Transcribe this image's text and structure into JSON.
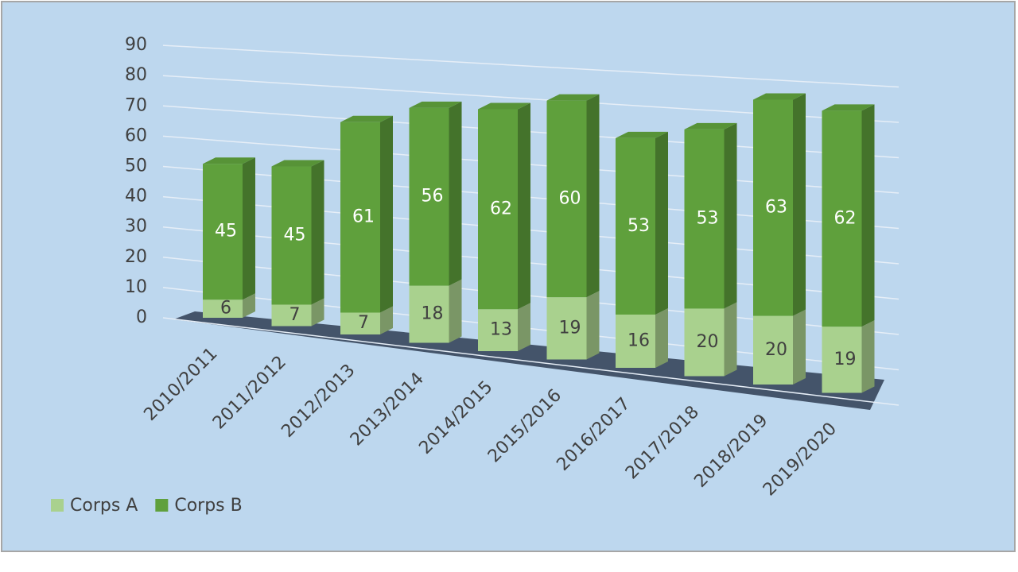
{
  "chart_data": {
    "type": "bar3d_stacked",
    "categories": [
      "2010/2011",
      "2011/2012",
      "2012/2013",
      "2013/2014",
      "2014/2015",
      "2015/2016",
      "2016/2017",
      "2017/2018",
      "2018/2019",
      "2019/2020"
    ],
    "series": [
      {
        "name": "Corps A",
        "color": "#a9d18e",
        "values": [
          6,
          7,
          7,
          18,
          13,
          19,
          16,
          20,
          20,
          19
        ]
      },
      {
        "name": "Corps B",
        "color": "#5fa03c",
        "values": [
          45,
          45,
          61,
          56,
          62,
          60,
          53,
          53,
          63,
          62
        ]
      }
    ],
    "ylim": [
      0,
      90
    ],
    "yticks": [
      0,
      10,
      20,
      30,
      40,
      50,
      60,
      70,
      80,
      90
    ],
    "grid": true,
    "legend": "bottom-left"
  }
}
